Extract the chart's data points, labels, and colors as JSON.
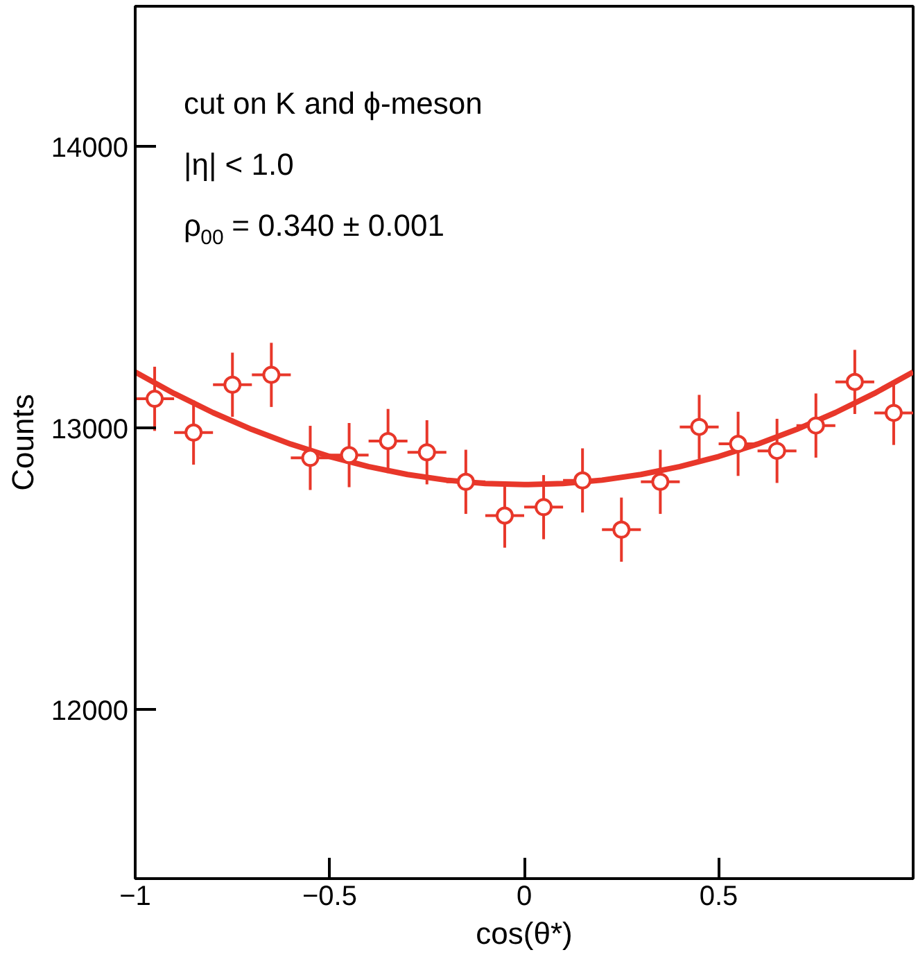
{
  "chart_data": {
    "type": "scatter",
    "xlabel": "cos(θ*)",
    "ylabel": "Counts",
    "xlim": [
      -1,
      1
    ],
    "ylim": [
      11400,
      14500
    ],
    "xticks": [
      {
        "value": -1,
        "label": "−1"
      },
      {
        "value": -0.5,
        "label": "−0.5"
      },
      0,
      0.5
    ],
    "yticks": [
      12000,
      13000,
      14000
    ],
    "grid": false,
    "annotations": [
      "cut on K and ϕ-meson",
      "|η| < 1.0",
      "ρ$_{00}$ = 0.340 ± 0.001"
    ],
    "series": [
      {
        "marker": "circle",
        "color": "#e8372a",
        "x": [
          -0.95,
          -0.85,
          -0.75,
          -0.65,
          -0.55,
          -0.45,
          -0.35,
          -0.25,
          -0.15,
          -0.05,
          0.05,
          0.15,
          0.25,
          0.35,
          0.45,
          0.55,
          0.65,
          0.75,
          0.85,
          0.95
        ],
        "values": [
          13105,
          12985,
          13155,
          13190,
          12895,
          12905,
          12955,
          12915,
          12810,
          12690,
          12720,
          12815,
          12640,
          12810,
          13005,
          12945,
          12920,
          13010,
          13165,
          13055
        ],
        "errors": [
          114,
          114,
          114,
          114,
          114,
          114,
          114,
          114,
          114,
          114,
          114,
          114,
          114,
          114,
          114,
          114,
          114,
          114,
          114,
          114
        ],
        "xerrors": [
          0.05,
          0.05,
          0.05,
          0.05,
          0.05,
          0.05,
          0.05,
          0.05,
          0.05,
          0.05,
          0.05,
          0.05,
          0.05,
          0.05,
          0.05,
          0.05,
          0.05,
          0.05,
          0.05,
          0.05
        ]
      },
      {
        "type": "line",
        "color": "#e8372a",
        "line_style": "solid",
        "x": [
          -1,
          -0.9,
          -0.8,
          -0.7,
          -0.6,
          -0.5,
          -0.4,
          -0.3,
          -0.2,
          -0.1,
          0,
          0.1,
          0.2,
          0.3,
          0.4,
          0.5,
          0.6,
          0.7,
          0.8,
          0.9,
          1
        ],
        "values": [
          13200,
          13124,
          13056,
          12996,
          12944,
          12900,
          12864,
          12836,
          12816,
          12804,
          12800,
          12804,
          12816,
          12836,
          12864,
          12900,
          12944,
          12996,
          13056,
          13124,
          13200
        ]
      }
    ]
  }
}
